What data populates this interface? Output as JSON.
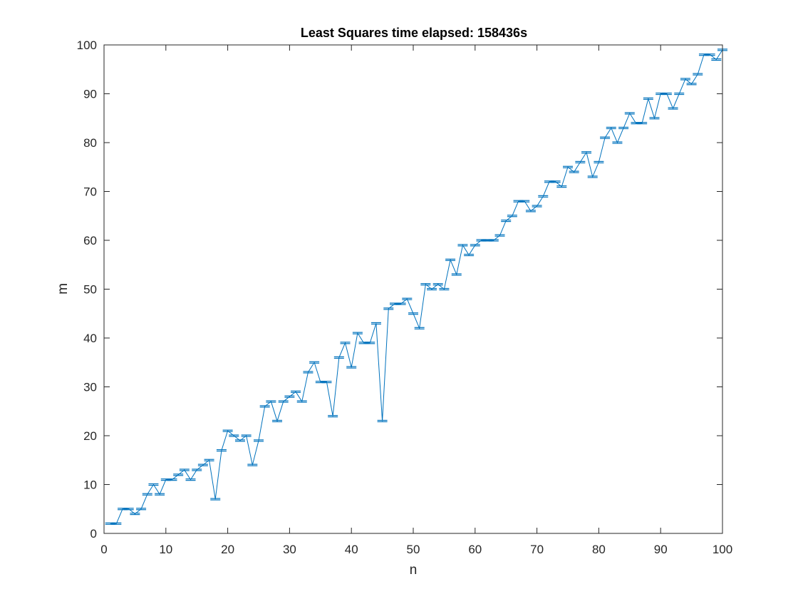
{
  "chart_data": {
    "type": "line",
    "title": "Least Squares time elapsed: 158436s",
    "xlabel": "n",
    "ylabel": "m",
    "xlim": [
      0,
      100
    ],
    "ylim": [
      0,
      100
    ],
    "xticks": [
      0,
      10,
      20,
      30,
      40,
      50,
      60,
      70,
      80,
      90,
      100
    ],
    "yticks": [
      0,
      10,
      20,
      30,
      40,
      50,
      60,
      70,
      80,
      90,
      100
    ],
    "grid": false,
    "box": true,
    "error_bars": true,
    "series": [
      {
        "color": "#0072BD",
        "x": [
          1,
          2,
          3,
          4,
          5,
          6,
          7,
          8,
          9,
          10,
          11,
          12,
          13,
          14,
          15,
          16,
          17,
          18,
          19,
          20,
          21,
          22,
          23,
          24,
          25,
          26,
          27,
          28,
          29,
          30,
          31,
          32,
          33,
          34,
          35,
          36,
          37,
          38,
          39,
          40,
          41,
          42,
          43,
          44,
          45,
          46,
          47,
          48,
          49,
          50,
          51,
          52,
          53,
          54,
          55,
          56,
          57,
          58,
          59,
          60,
          61,
          62,
          63,
          64,
          65,
          66,
          67,
          68,
          69,
          70,
          71,
          72,
          73,
          74,
          75,
          76,
          77,
          78,
          79,
          80,
          81,
          82,
          83,
          84,
          85,
          86,
          87,
          88,
          89,
          90,
          91,
          92,
          93,
          94,
          95,
          96,
          97,
          98,
          99,
          100
        ],
        "y": [
          2,
          2,
          5,
          5,
          4,
          5,
          8,
          10,
          8,
          11,
          11,
          12,
          13,
          11,
          13,
          14,
          15,
          7,
          17,
          21,
          20,
          19,
          20,
          14,
          19,
          26,
          27,
          23,
          27,
          28,
          29,
          27,
          33,
          35,
          31,
          31,
          24,
          36,
          39,
          34,
          41,
          39,
          39,
          43,
          23,
          46,
          47,
          47,
          48,
          45,
          42,
          51,
          50,
          51,
          50,
          56,
          53,
          59,
          57,
          59,
          60,
          60,
          60,
          61,
          64,
          65,
          68,
          68,
          66,
          67,
          69,
          72,
          72,
          71,
          75,
          74,
          76,
          78,
          73,
          76,
          81,
          83,
          80,
          83,
          86,
          84,
          84,
          89,
          85,
          90,
          90,
          87,
          90,
          93,
          92,
          94,
          98,
          98,
          97,
          99
        ]
      }
    ]
  }
}
